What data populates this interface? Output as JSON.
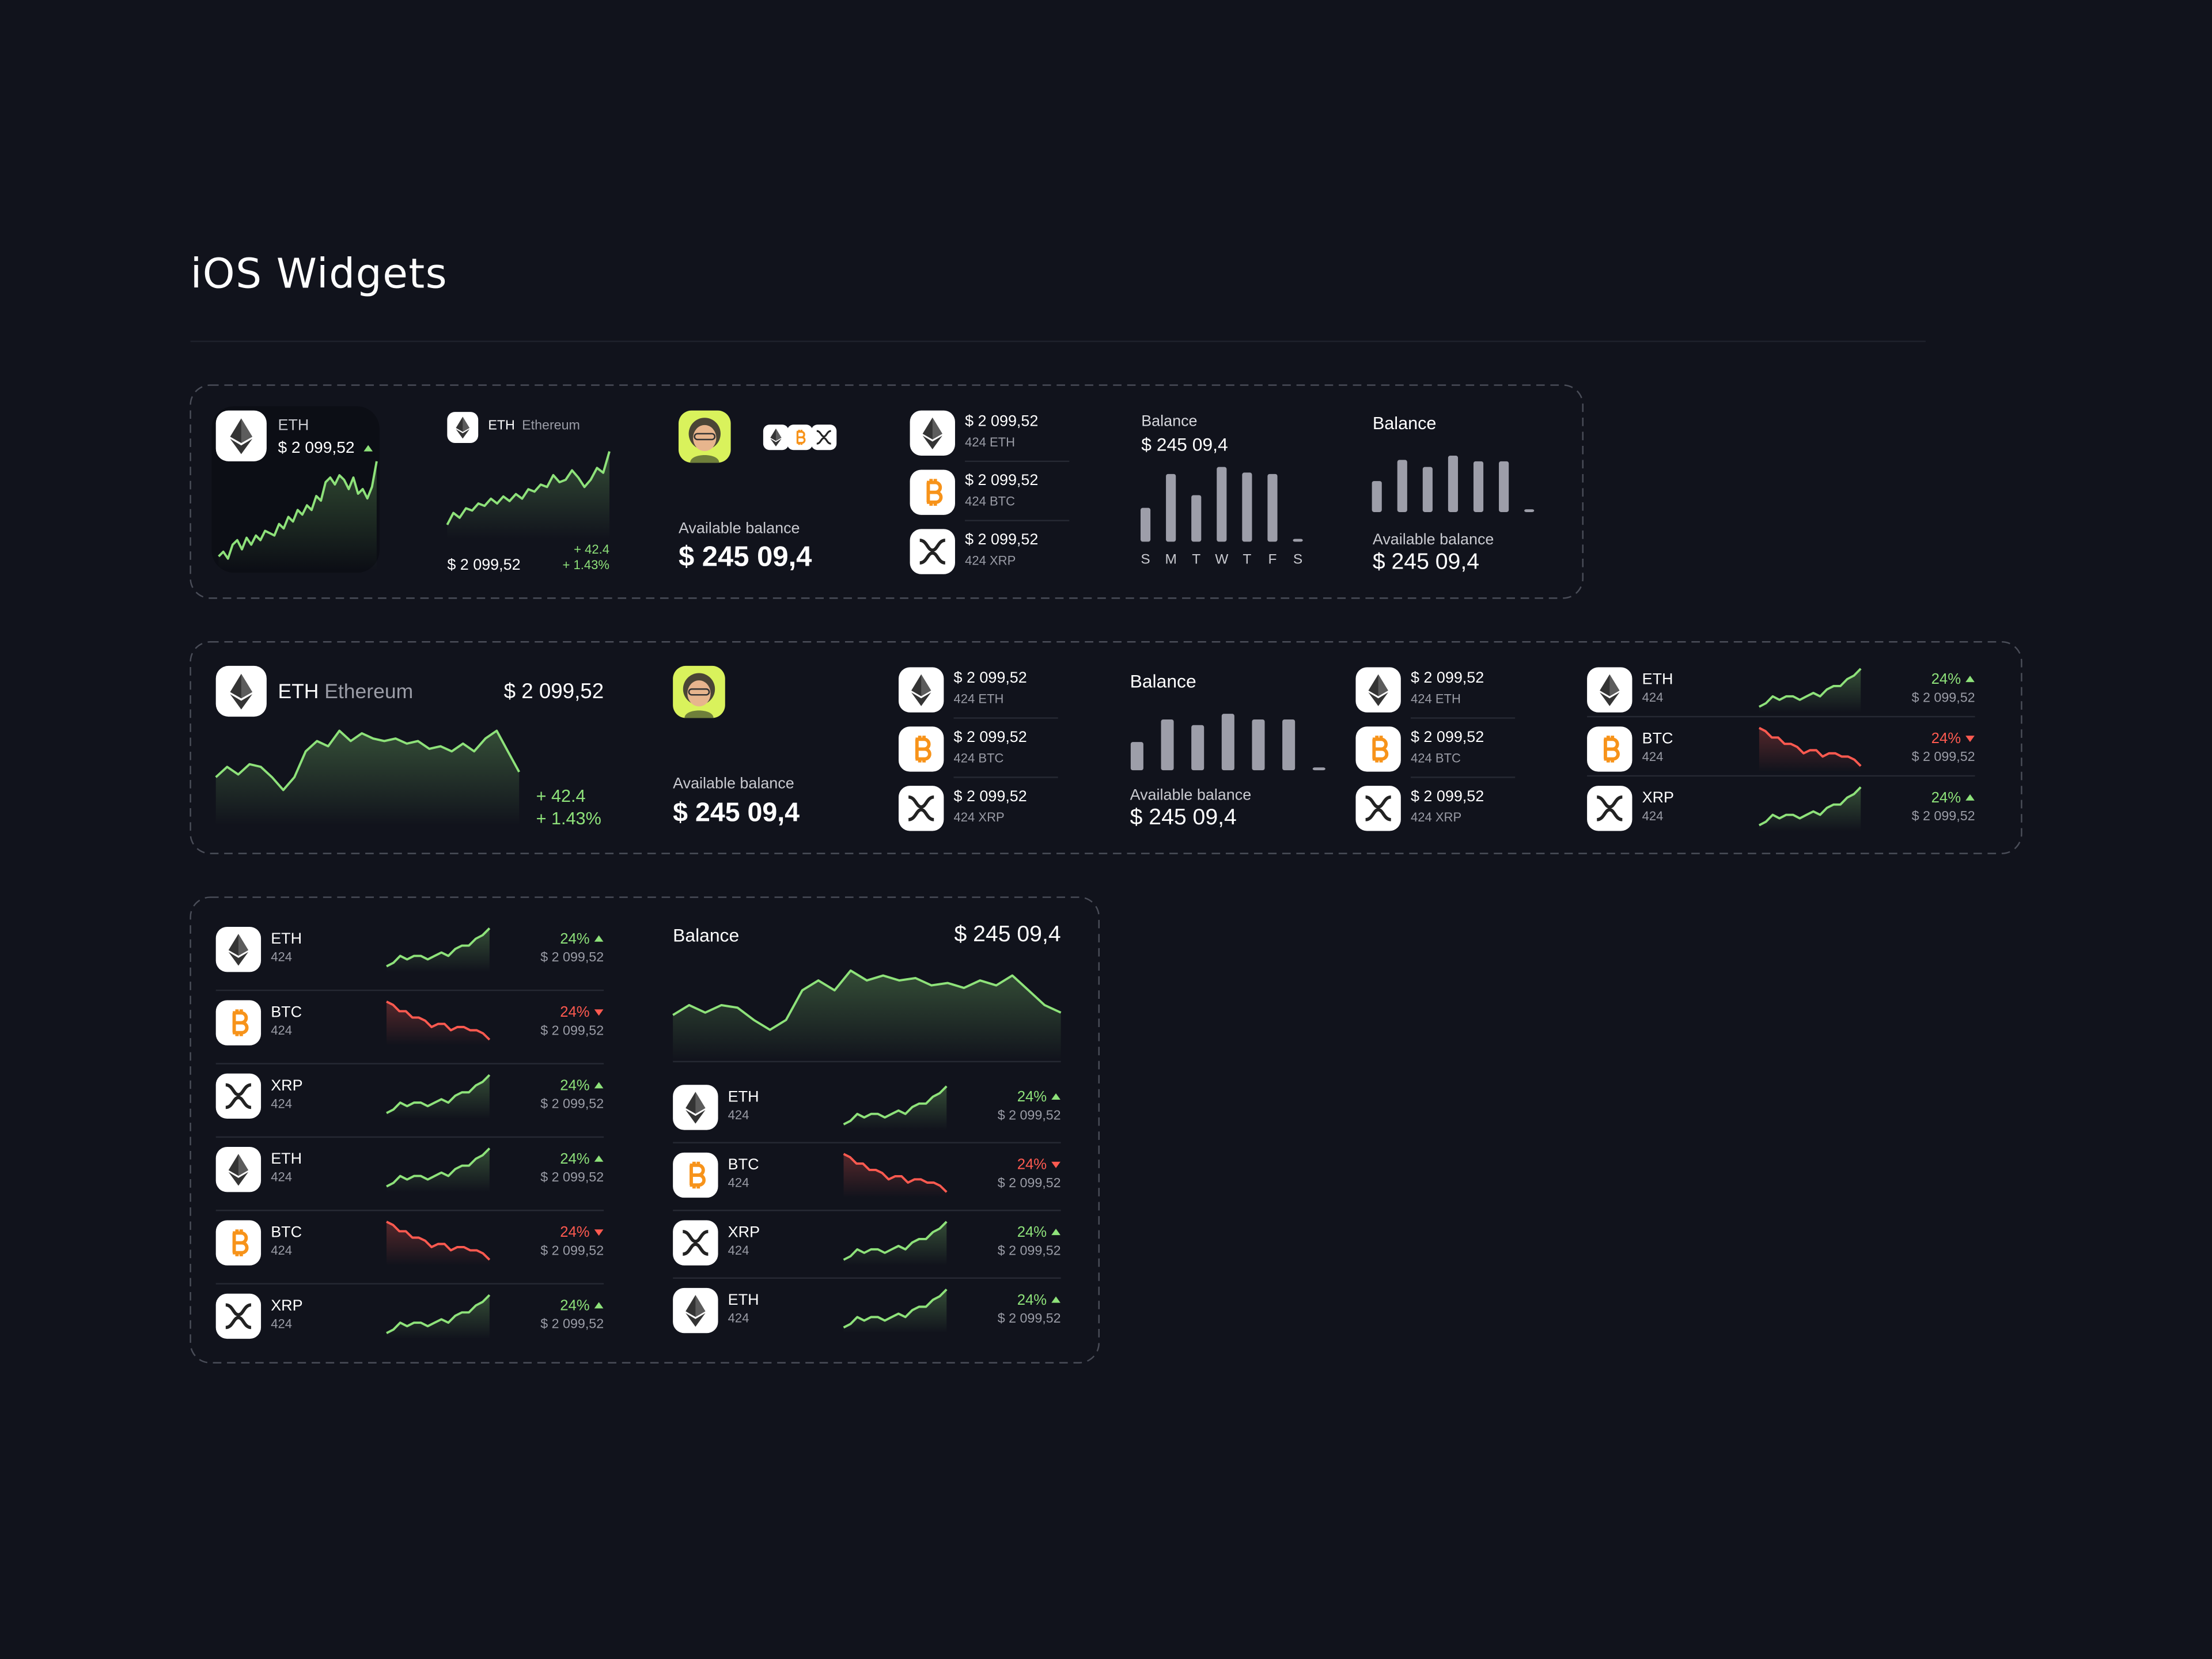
{
  "header": {
    "title": "iOS Widgets"
  },
  "sparklines": {
    "up": [
      3,
      4,
      6,
      5,
      6,
      6,
      5,
      6,
      7,
      6,
      8,
      9,
      9,
      11,
      12,
      14
    ],
    "down": [
      14,
      13,
      11,
      11,
      9,
      9,
      8,
      6,
      7,
      7,
      5,
      6,
      6,
      5,
      5,
      4,
      2
    ],
    "eth_small": [
      2,
      4,
      1,
      7,
      9,
      5,
      10,
      7,
      11,
      9,
      13,
      12,
      11,
      16,
      14,
      19,
      17,
      22,
      20,
      24,
      22,
      28,
      26,
      34,
      36,
      33,
      37,
      35,
      31,
      36,
      29,
      31,
      27,
      32,
      43
    ],
    "eth_medium": [
      2,
      7,
      5,
      9,
      8,
      11,
      10,
      13,
      11,
      14,
      12,
      15,
      13,
      17,
      16,
      19,
      18,
      23,
      20,
      21,
      25,
      22,
      18,
      21,
      26,
      24,
      33
    ],
    "eth_wide": [
      14,
      18,
      15,
      19,
      18,
      14,
      9,
      14,
      24,
      28,
      26,
      32,
      28,
      31,
      29,
      28,
      29,
      27,
      28,
      25,
      26,
      24,
      27,
      24,
      29,
      32,
      24,
      16
    ],
    "balance": [
      14,
      18,
      15,
      18,
      17,
      12,
      8,
      12,
      24,
      28,
      24,
      32,
      28,
      30,
      28,
      29,
      26,
      27,
      25,
      28,
      26,
      30,
      24,
      18,
      15
    ]
  },
  "row1": {
    "price_widget": {
      "symbol": "ETH",
      "price": "$ 2 099,52",
      "trend": "up"
    },
    "chart_widget": {
      "symbol": "ETH",
      "name": "Ethereum",
      "price": "$ 2 099,52",
      "change": "+ 42.4",
      "change_pct": "+ 1.43%"
    },
    "balance_widget": {
      "caption": "Available balance",
      "amount": "$ 245 09,4"
    },
    "holdings_widget": {
      "rows": [
        {
          "coin": "ETH",
          "price": "$ 2 099,52",
          "amount": "424 ETH"
        },
        {
          "coin": "BTC",
          "price": "$ 2 099,52",
          "amount": "424 BTC"
        },
        {
          "coin": "XRP",
          "price": "$ 2 099,52",
          "amount": "424 XRP"
        }
      ]
    },
    "weekly_widget": {
      "title": "Balance",
      "amount": "$ 245 09,4",
      "days": [
        "S",
        "M",
        "T",
        "W",
        "T",
        "F",
        "S"
      ],
      "bars": [
        24,
        48,
        33,
        53,
        49,
        48,
        2
      ]
    },
    "bars_widget": {
      "title": "Balance",
      "bars": [
        22,
        37,
        32,
        40,
        36,
        36,
        2
      ],
      "caption": "Available balance",
      "amount": "$ 245 09,4"
    }
  },
  "row2": {
    "chart_widget": {
      "symbol": "ETH",
      "name": "Ethereum",
      "price": "$ 2 099,52",
      "change": "+ 42.4",
      "change_pct": "+ 1.43%"
    },
    "balance_widget": {
      "caption": "Available balance",
      "amount": "$ 245 09,4"
    },
    "holdings_widget": {
      "rows": [
        {
          "coin": "ETH",
          "price": "$ 2 099,52",
          "amount": "424 ETH"
        },
        {
          "coin": "BTC",
          "price": "$ 2 099,52",
          "amount": "424 BTC"
        },
        {
          "coin": "XRP",
          "price": "$ 2 099,52",
          "amount": "424 XRP"
        }
      ]
    },
    "bars_widget": {
      "title": "Balance",
      "bars": [
        20,
        36,
        32,
        40,
        36,
        36,
        2
      ],
      "caption": "Available balance",
      "amount": "$ 245 09,4"
    },
    "holdings_widget_2": {
      "rows": [
        {
          "coin": "ETH",
          "price": "$ 2 099,52",
          "amount": "424 ETH"
        },
        {
          "coin": "BTC",
          "price": "$ 2 099,52",
          "amount": "424 BTC"
        },
        {
          "coin": "XRP",
          "price": "$ 2 099,52",
          "amount": "424 XRP"
        }
      ]
    },
    "market_widget": {
      "rows": [
        {
          "coin": "ETH",
          "count": "424",
          "change": "24%",
          "trend": "up",
          "price": "$ 2 099,52"
        },
        {
          "coin": "BTC",
          "count": "424",
          "change": "24%",
          "trend": "down",
          "price": "$ 2 099,52"
        },
        {
          "coin": "XRP",
          "count": "424",
          "change": "24%",
          "trend": "up",
          "price": "$ 2 099,52"
        }
      ]
    }
  },
  "row3": {
    "market_list": {
      "rows": [
        {
          "coin": "ETH",
          "count": "424",
          "change": "24%",
          "trend": "up",
          "price": "$ 2 099,52"
        },
        {
          "coin": "BTC",
          "count": "424",
          "change": "24%",
          "trend": "down",
          "price": "$ 2 099,52"
        },
        {
          "coin": "XRP",
          "count": "424",
          "change": "24%",
          "trend": "up",
          "price": "$ 2 099,52"
        },
        {
          "coin": "ETH",
          "count": "424",
          "change": "24%",
          "trend": "up",
          "price": "$ 2 099,52"
        },
        {
          "coin": "BTC",
          "count": "424",
          "change": "24%",
          "trend": "down",
          "price": "$ 2 099,52"
        },
        {
          "coin": "XRP",
          "count": "424",
          "change": "24%",
          "trend": "up",
          "price": "$ 2 099,52"
        }
      ]
    },
    "balance_chart": {
      "title": "Balance",
      "amount": "$ 245 09,4",
      "rows": [
        {
          "coin": "ETH",
          "count": "424",
          "change": "24%",
          "trend": "up",
          "price": "$ 2 099,52"
        },
        {
          "coin": "BTC",
          "count": "424",
          "change": "24%",
          "trend": "down",
          "price": "$ 2 099,52"
        },
        {
          "coin": "XRP",
          "count": "424",
          "change": "24%",
          "trend": "up",
          "price": "$ 2 099,52"
        },
        {
          "coin": "ETH",
          "count": "424",
          "change": "24%",
          "trend": "up",
          "price": "$ 2 099,52"
        }
      ]
    }
  }
}
